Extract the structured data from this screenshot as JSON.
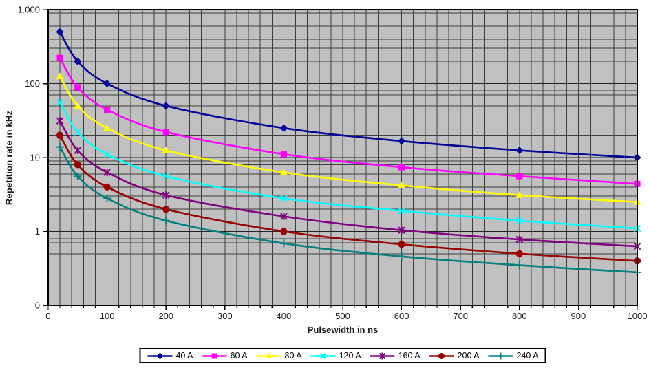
{
  "chart_data": {
    "type": "line",
    "title": "",
    "xlabel": "Pulsewidth in ns",
    "ylabel": "Repetition rate in kHz",
    "x": [
      20,
      50,
      100,
      200,
      400,
      600,
      800,
      1000
    ],
    "series": [
      {
        "name": "40 A",
        "color": "#000099",
        "marker": "diamond",
        "values": [
          500,
          200,
          100,
          50,
          25,
          16.7,
          12.5,
          10
        ]
      },
      {
        "name": "60 A",
        "color": "#FF00FF",
        "marker": "square",
        "values": [
          222,
          88.9,
          44.4,
          22.2,
          11.1,
          7.4,
          5.6,
          4.4
        ]
      },
      {
        "name": "80 A",
        "color": "#FFFF00",
        "marker": "triangle",
        "values": [
          125,
          50,
          25,
          12.5,
          6.3,
          4.2,
          3.1,
          2.5
        ]
      },
      {
        "name": "120 A",
        "color": "#00FFFF",
        "marker": "x",
        "values": [
          55.6,
          22.2,
          11.1,
          5.6,
          2.8,
          1.9,
          1.4,
          1.1
        ]
      },
      {
        "name": "160 A",
        "color": "#800080",
        "marker": "asterisk",
        "values": [
          31.3,
          12.5,
          6.3,
          3.1,
          1.6,
          1.04,
          0.78,
          0.63
        ]
      },
      {
        "name": "200 A",
        "color": "#990000",
        "marker": "circle",
        "values": [
          20,
          8,
          4,
          2,
          1,
          0.67,
          0.5,
          0.4
        ]
      },
      {
        "name": "240 A",
        "color": "#008080",
        "marker": "plus",
        "values": [
          13.9,
          5.6,
          2.8,
          1.4,
          0.69,
          0.46,
          0.35,
          0.28
        ]
      }
    ],
    "x_axis": {
      "min": 0,
      "max": 1000,
      "major_unit": 100,
      "minor_unit": 20,
      "tick_labels": [
        "0",
        "100",
        "200",
        "300",
        "400",
        "500",
        "600",
        "700",
        "800",
        "900",
        "1000"
      ],
      "tick_values": [
        0,
        100,
        200,
        300,
        400,
        500,
        600,
        700,
        800,
        900,
        1000
      ]
    },
    "y_axis": {
      "scale": "log",
      "min": 0.1,
      "max": 1000,
      "tick_labels": [
        "1.000",
        "100",
        "10",
        "1",
        "0"
      ],
      "tick_values": [
        1000,
        100,
        10,
        1,
        0.1
      ]
    },
    "grid": "both-major-and-minor",
    "legend_position": "bottom-center",
    "colors": {
      "plot_background": "#C0C0C0",
      "gridline": "#3d3d3d",
      "axis": "#000000",
      "text": "#1a1a1a"
    }
  }
}
